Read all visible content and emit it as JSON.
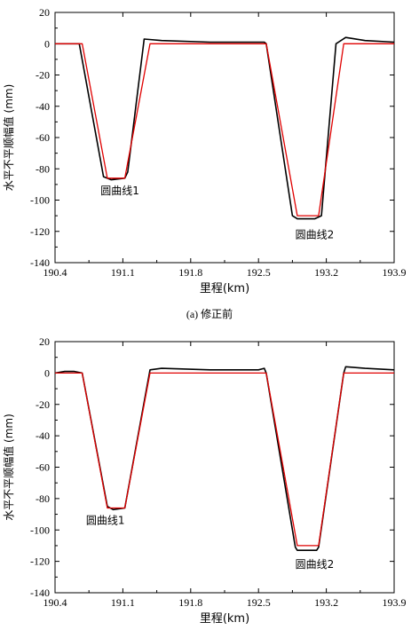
{
  "caption": "(a)  修正前",
  "chart_data": [
    {
      "type": "line",
      "xlabel": "里程(km)",
      "ylabel": "水平不平顺幅值 (mm)",
      "xlim": [
        190.4,
        193.9
      ],
      "ylim": [
        -140,
        20
      ],
      "xticks": [
        190.4,
        191.1,
        191.8,
        192.5,
        193.2,
        193.9
      ],
      "yticks": [
        20,
        0,
        -20,
        -40,
        -60,
        -80,
        -100,
        -120,
        -140
      ],
      "grid": false,
      "annotations": [
        {
          "text": "圆曲线1",
          "x": 191.07,
          "y": -94
        },
        {
          "text": "圆曲线2",
          "x": 193.08,
          "y": -122
        }
      ],
      "series": [
        {
          "color": "#000000",
          "x": [
            190.4,
            190.6,
            190.65,
            190.9,
            190.98,
            191.12,
            191.15,
            191.32,
            191.5,
            192.0,
            192.5,
            192.56,
            192.58,
            192.85,
            192.9,
            193.08,
            193.15,
            193.3,
            193.4,
            193.6,
            193.9
          ],
          "y": [
            0,
            0,
            0,
            -85,
            -87,
            -86,
            -82,
            3,
            2,
            1,
            1,
            1,
            0,
            -110,
            -112,
            -112,
            -110,
            0,
            4,
            2,
            1
          ]
        },
        {
          "color": "#e00000",
          "x": [
            190.4,
            190.68,
            190.94,
            191.12,
            191.38,
            192.58,
            192.9,
            193.12,
            193.38,
            193.9
          ],
          "y": [
            0,
            0,
            -86,
            -86,
            0,
            0,
            -110,
            -110,
            0,
            0
          ]
        }
      ]
    },
    {
      "type": "line",
      "xlabel": "里程(km)",
      "ylabel": "水平不平顺幅值 (mm)",
      "xlim": [
        190.4,
        193.9
      ],
      "ylim": [
        -140,
        20
      ],
      "xticks": [
        190.4,
        191.1,
        191.8,
        192.5,
        193.2,
        193.9
      ],
      "yticks": [
        20,
        0,
        -20,
        -40,
        -60,
        -80,
        -100,
        -120,
        -140
      ],
      "grid": false,
      "annotations": [
        {
          "text": "圆曲线1",
          "x": 190.92,
          "y": -94
        },
        {
          "text": "圆曲线2",
          "x": 193.08,
          "y": -122
        }
      ],
      "series": [
        {
          "color": "#000000",
          "x": [
            190.4,
            190.5,
            190.6,
            190.68,
            190.94,
            191.0,
            191.12,
            191.38,
            191.5,
            192.0,
            192.5,
            192.56,
            192.58,
            192.88,
            192.9,
            193.1,
            193.12,
            193.38,
            193.4,
            193.6,
            193.9
          ],
          "y": [
            0,
            1,
            1,
            0,
            -85,
            -87,
            -86,
            2,
            3,
            2,
            2,
            3,
            0,
            -111,
            -113,
            -113,
            -111,
            0,
            4,
            3,
            2
          ]
        },
        {
          "color": "#e00000",
          "x": [
            190.4,
            190.68,
            190.94,
            191.12,
            191.38,
            192.58,
            192.9,
            193.12,
            193.38,
            193.9
          ],
          "y": [
            0,
            0,
            -86,
            -86,
            0,
            0,
            -110,
            -110,
            0,
            0
          ]
        }
      ]
    }
  ]
}
